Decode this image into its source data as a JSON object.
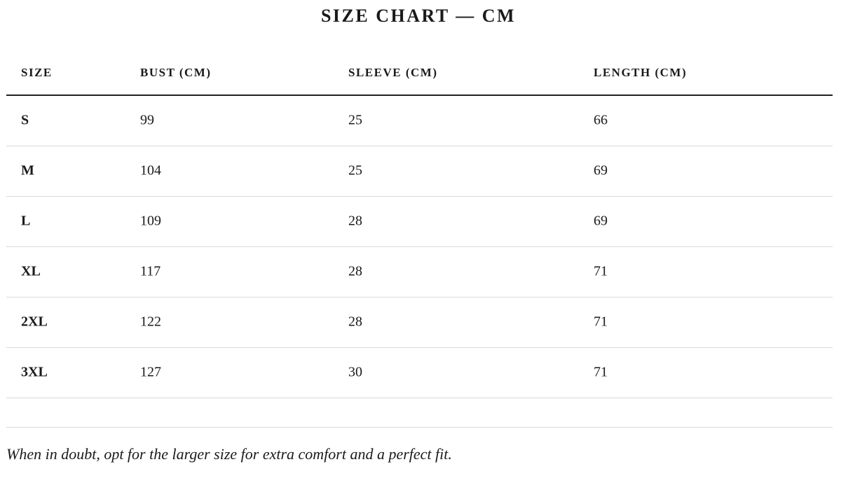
{
  "title": "SIZE CHART — CM",
  "table": {
    "headers": [
      "SIZE",
      "BUST (CM)",
      "SLEEVE (CM)",
      "LENGTH (CM)"
    ],
    "rows": [
      [
        "S",
        99,
        25,
        66
      ],
      [
        "M",
        104,
        25,
        69
      ],
      [
        "L",
        109,
        28,
        69
      ],
      [
        "XL",
        117,
        28,
        71
      ],
      [
        "2XL",
        122,
        28,
        71
      ],
      [
        "3XL",
        127,
        30,
        71
      ]
    ]
  },
  "note": "When in doubt, opt for the larger size for extra comfort and a perfect fit."
}
